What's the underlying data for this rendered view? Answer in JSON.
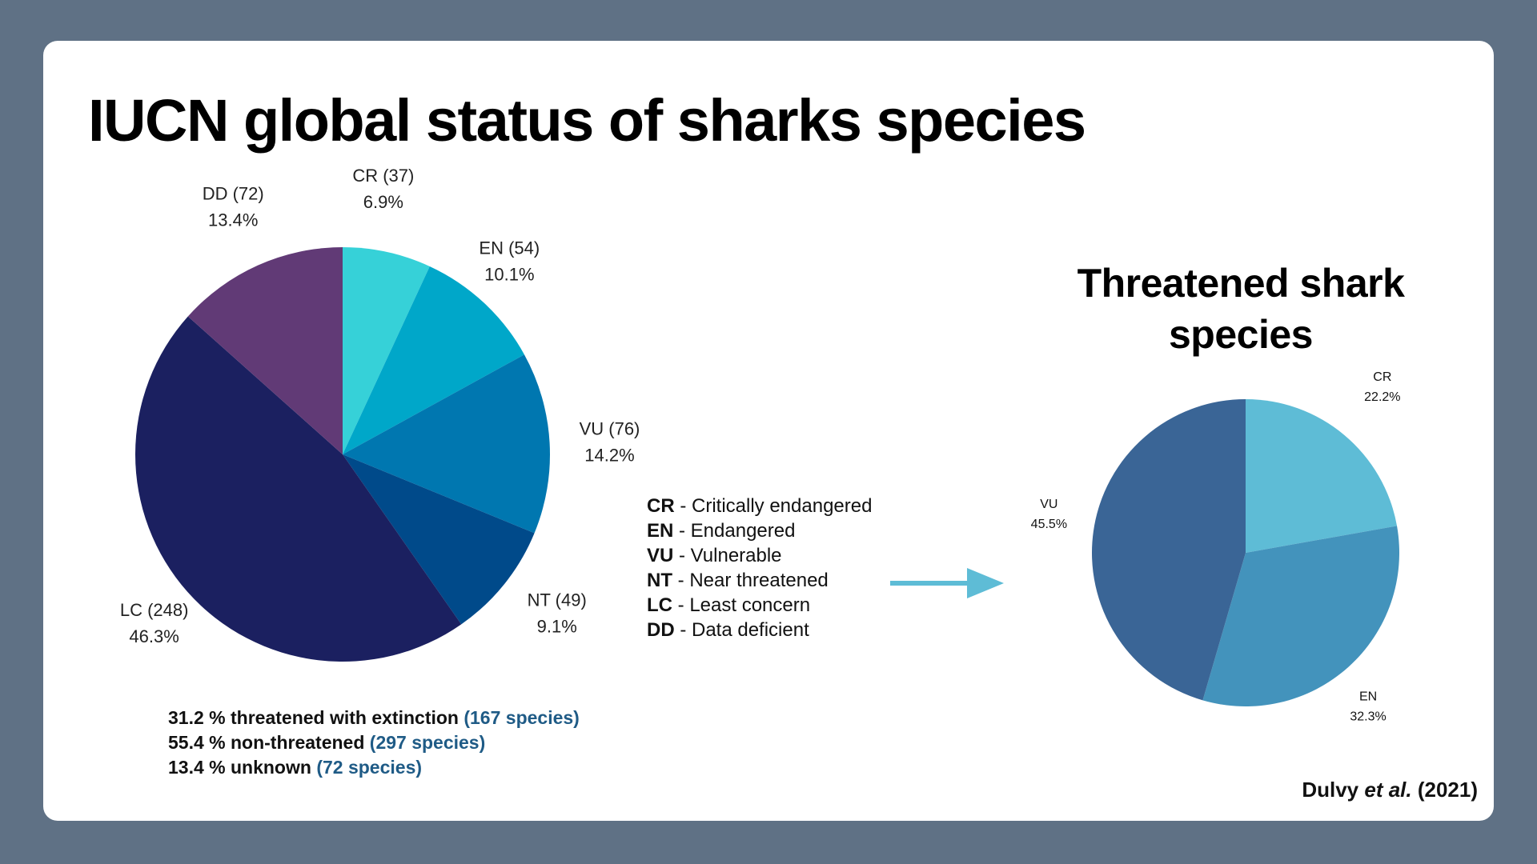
{
  "title": "IUCN global status of sharks species",
  "chart_data": [
    {
      "type": "pie",
      "title": "",
      "slices": [
        {
          "code": "CR",
          "count": "37",
          "percent": 6.9,
          "label_line1": "CR (37)",
          "label_line2": "6.9%",
          "color": "#36d1d8"
        },
        {
          "code": "EN",
          "count": "54",
          "percent": 10.1,
          "label_line1": "EN (54)",
          "label_line2": "10.1%",
          "color": "#00a7c9"
        },
        {
          "code": "VU",
          "count": "76",
          "percent": 14.2,
          "label_line1": "VU (76)",
          "label_line2": "14.2%",
          "color": "#0077b0"
        },
        {
          "code": "NT",
          "count": "49",
          "percent": 9.1,
          "label_line1": "NT (49)",
          "label_line2": "9.1%",
          "color": "#004a8a"
        },
        {
          "code": "LC",
          "count": "248",
          "percent": 46.3,
          "label_line1": "LC (248)",
          "label_line2": "46.3%",
          "color": "#1b2060"
        },
        {
          "code": "DD",
          "count": "72",
          "percent": 13.4,
          "label_line1": "DD (72)",
          "label_line2": "13.4%",
          "color": "#613a76"
        }
      ]
    },
    {
      "type": "pie",
      "title": "Threatened shark species",
      "slices": [
        {
          "code": "CR",
          "percent": 22.2,
          "label_line1": "CR",
          "label_line2": "22.2%",
          "color": "#5ebcd6"
        },
        {
          "code": "EN",
          "percent": 32.3,
          "label_line1": "EN",
          "label_line2": "32.3%",
          "color": "#4393bc"
        },
        {
          "code": "VU",
          "percent": 45.5,
          "label_line1": "VU",
          "label_line2": "45.5%",
          "color": "#3a6596"
        }
      ]
    }
  ],
  "summary": [
    {
      "text": "31.2 % threatened with extinction",
      "count": "(167 species)"
    },
    {
      "text": "55.4 % non-threatened",
      "count": "(297 species)"
    },
    {
      "text": "13.4 % unknown",
      "count": "(72 species)"
    }
  ],
  "legend": [
    {
      "code": "CR",
      "desc": " - Critically endangered"
    },
    {
      "code": "EN",
      "desc": " - Endangered"
    },
    {
      "code": "VU",
      "desc": " - Vulnerable"
    },
    {
      "code": "NT",
      "desc": " - Near threatened"
    },
    {
      "code": "LC",
      "desc": " - Least concern"
    },
    {
      "code": "DD",
      "desc": " - Data deficient"
    }
  ],
  "arrow_color": "#5ebcd6",
  "citation": {
    "author": "Dulvy ",
    "etal": "et al.",
    "year": " (2021)"
  }
}
